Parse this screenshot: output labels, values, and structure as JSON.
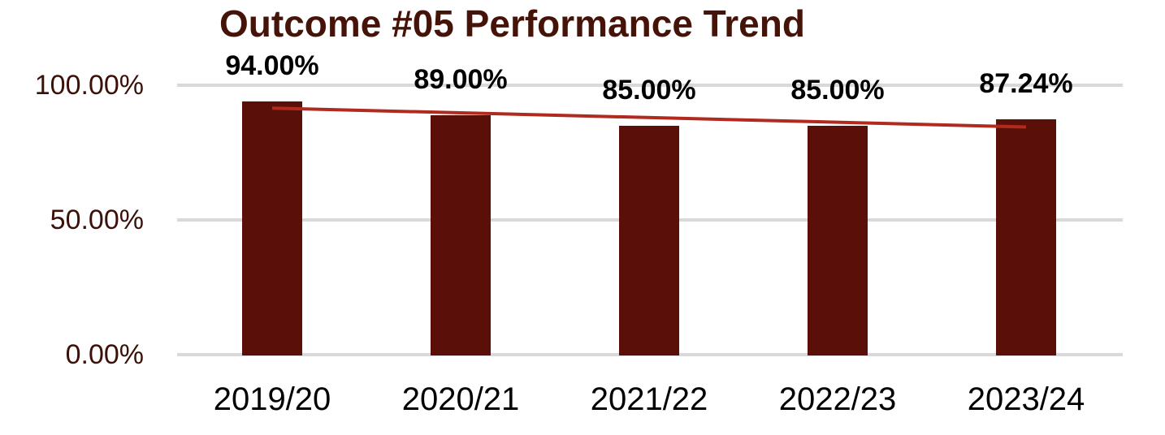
{
  "chart_data": {
    "type": "bar",
    "title": "Outcome #05 Performance Trend",
    "categories": [
      "2019/20",
      "2020/21",
      "2021/22",
      "2022/23",
      "2023/24"
    ],
    "values": [
      94.0,
      89.0,
      85.0,
      85.0,
      87.24
    ],
    "data_labels": [
      "94.00%",
      "89.00%",
      "85.00%",
      "85.00%",
      "87.24%"
    ],
    "y_ticks": [
      {
        "pct": 100,
        "label": "100.00%"
      },
      {
        "pct": 50,
        "label": "50.00%"
      },
      {
        "pct": 0,
        "label": "0.00%"
      }
    ],
    "ylim": [
      0,
      100
    ],
    "grid": true,
    "legend": "none",
    "trendline": {
      "type": "linear",
      "start_pct": 91.5,
      "end_pct": 84.5
    },
    "colors": {
      "bar": "#5a1008",
      "trendline": "#b02a1e",
      "title": "#461309",
      "y_axis_label": "#3c1109",
      "gridline": "#d9d9d9",
      "data_label": "#000000",
      "category_label": "#000000"
    }
  }
}
